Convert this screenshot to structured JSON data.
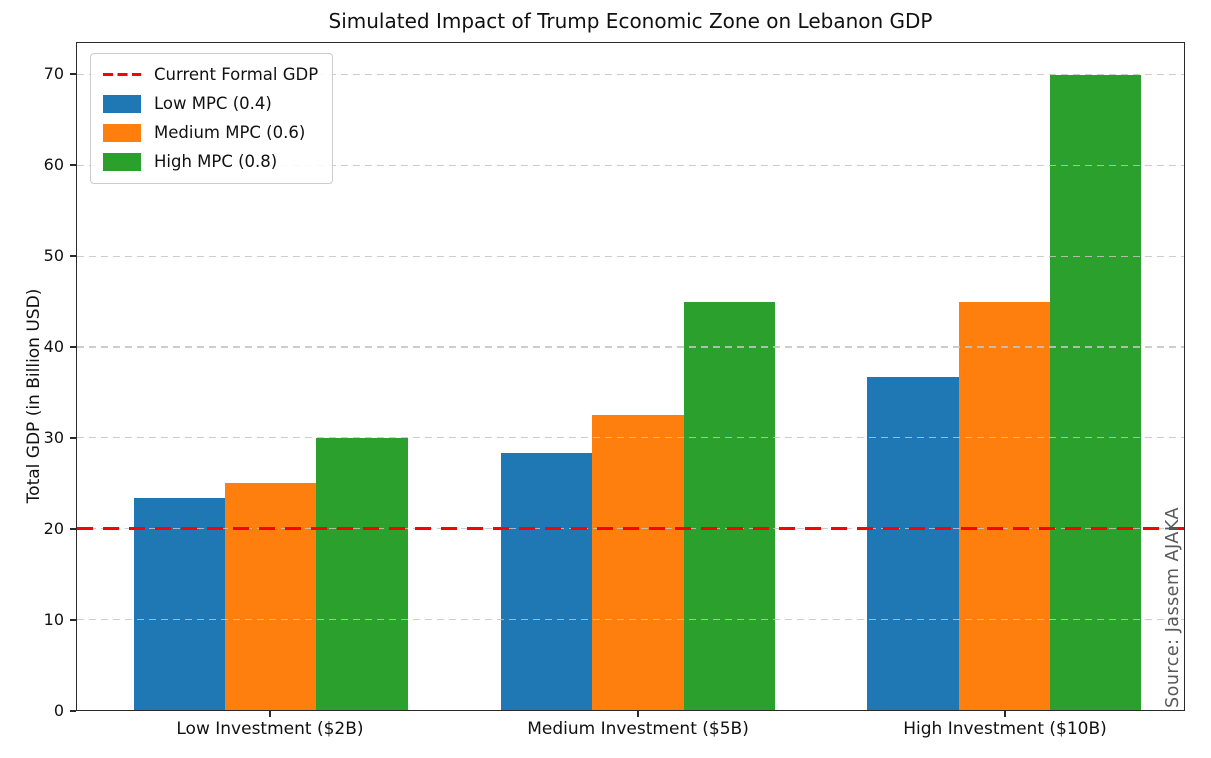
{
  "chart_data": {
    "type": "bar",
    "title": "Simulated Impact of Trump Economic Zone on Lebanon GDP",
    "ylabel": "Total GDP (in Billion USD)",
    "xlabel": "",
    "categories": [
      "Low Investment ($2B)",
      "Medium Investment ($5B)",
      "High Investment ($10B)"
    ],
    "series": [
      {
        "name": "Low MPC (0.4)",
        "color": "#1f77b4",
        "values": [
          23.33,
          28.33,
          36.67
        ]
      },
      {
        "name": "Medium MPC (0.6)",
        "color": "#ff7f0e",
        "values": [
          25.0,
          32.5,
          45.0
        ]
      },
      {
        "name": "High MPC (0.8)",
        "color": "#2ca02c",
        "values": [
          30.0,
          45.0,
          70.0
        ]
      }
    ],
    "reference_line": {
      "label": "Current Formal GDP",
      "value": 20,
      "color": "#ff0000",
      "style": "dashed"
    },
    "yticks": [
      0,
      10,
      20,
      30,
      40,
      50,
      60,
      70
    ],
    "ylim": [
      0,
      73.5
    ],
    "grid": true,
    "grid_style": "dashed",
    "legend_position": "upper left",
    "legend_entries": [
      "Current Formal GDP",
      "Low MPC (0.4)",
      "Medium MPC (0.6)",
      "High MPC (0.8)"
    ],
    "source_note": "Source: Jassem AJAKA"
  }
}
